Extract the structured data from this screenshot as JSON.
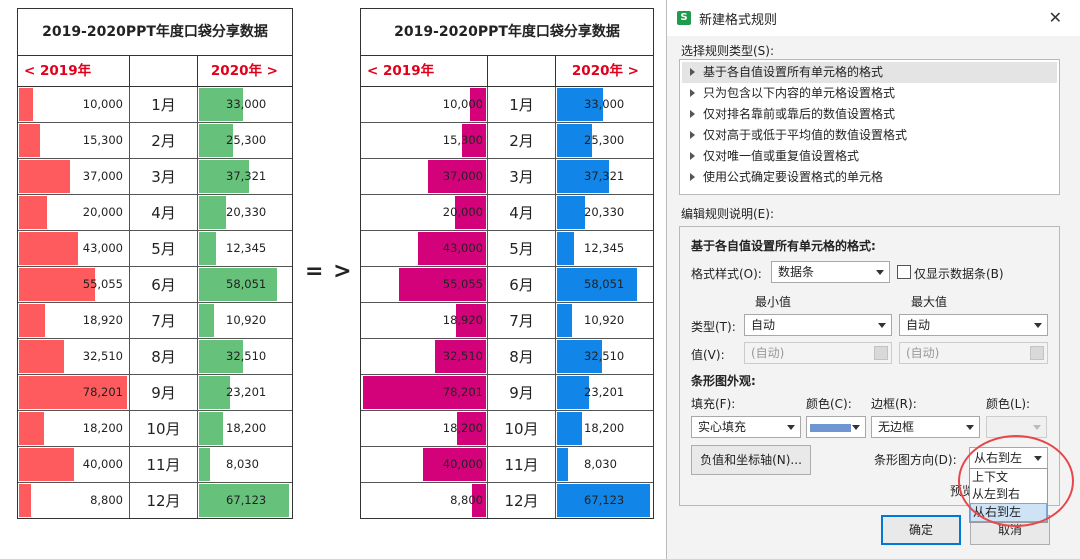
{
  "arrow": "= >",
  "left_table": {
    "title": "2019-2020PPT年度口袋分享数据",
    "hdr_left": "< 2019年",
    "hdr_right": "2020年 >",
    "color_2019": "#fe5b5e",
    "color_2020": "#66c27a"
  },
  "right_table": {
    "title": "2019-2020PPT年度口袋分享数据",
    "hdr_left": "< 2019年",
    "hdr_right": "2020年 >",
    "color_2019": "#d4027a",
    "color_2020": "#1185e8"
  },
  "rows": [
    {
      "month": "1月",
      "v2019": "10,000",
      "n2019": 10000,
      "v2020": "33,000",
      "n2020": 33000
    },
    {
      "month": "2月",
      "v2019": "15,300",
      "n2019": 15300,
      "v2020": "25,300",
      "n2020": 25300
    },
    {
      "month": "3月",
      "v2019": "37,000",
      "n2019": 37000,
      "v2020": "37,321",
      "n2020": 37321
    },
    {
      "month": "4月",
      "v2019": "20,000",
      "n2019": 20000,
      "v2020": "20,330",
      "n2020": 20330
    },
    {
      "month": "5月",
      "v2019": "43,000",
      "n2019": 43000,
      "v2020": "12,345",
      "n2020": 12345
    },
    {
      "month": "6月",
      "v2019": "55,055",
      "n2019": 55055,
      "v2020": "58,051",
      "n2020": 58051
    },
    {
      "month": "7月",
      "v2019": "18,920",
      "n2019": 18920,
      "v2020": "10,920",
      "n2020": 10920
    },
    {
      "month": "8月",
      "v2019": "32,510",
      "n2019": 32510,
      "v2020": "32,510",
      "n2020": 32510
    },
    {
      "month": "9月",
      "v2019": "78,201",
      "n2019": 78201,
      "v2020": "23,201",
      "n2020": 23201
    },
    {
      "month": "10月",
      "v2019": "18,200",
      "n2019": 18200,
      "v2020": "18,200",
      "n2020": 18200
    },
    {
      "month": "11月",
      "v2019": "40,000",
      "n2019": 40000,
      "v2020": "8,030",
      "n2020": 8030
    },
    {
      "month": "12月",
      "v2019": "8,800",
      "n2019": 8800,
      "v2020": "67,123",
      "n2020": 67123
    }
  ],
  "dialog": {
    "title": "新建格式规则",
    "close_icon": "close-icon",
    "select_rule_type_label": "选择规则类型(S):",
    "rule_types": [
      "基于各自值设置所有单元格的格式",
      "只为包含以下内容的单元格设置格式",
      "仅对排名靠前或靠后的数值设置格式",
      "仅对高于或低于平均值的数值设置格式",
      "仅对唯一值或重复值设置格式",
      "使用公式确定要设置格式的单元格"
    ],
    "edit_rule_label": "编辑规则说明(E):",
    "section_heading": "基于各自值设置所有单元格的格式:",
    "format_style_label": "格式样式(O):",
    "format_style_value": "数据条",
    "show_bar_only_label": "仅显示数据条(B)",
    "min_label": "最小值",
    "max_label": "最大值",
    "type_label": "类型(T):",
    "min_type": "自动",
    "max_type": "自动",
    "value_label": "值(V):",
    "min_value": "(自动)",
    "max_value": "(自动)",
    "bar_appearance_label": "条形图外观:",
    "fill_label": "填充(F):",
    "color_c_label": "颜色(C):",
    "border_label": "边框(R):",
    "color_l_label": "颜色(L):",
    "fill_value": "实心填充",
    "fill_color": "#6f96d2",
    "border_value": "无边框",
    "neg_axis_button": "负值和坐标轴(N)...",
    "direction_label": "条形图方向(D):",
    "direction_value": "从右到左",
    "direction_options": [
      "上下文",
      "从左到右",
      "从右到左"
    ],
    "preview_label_partial": "预览",
    "ok_button": "确定",
    "cancel_button": "取消"
  }
}
